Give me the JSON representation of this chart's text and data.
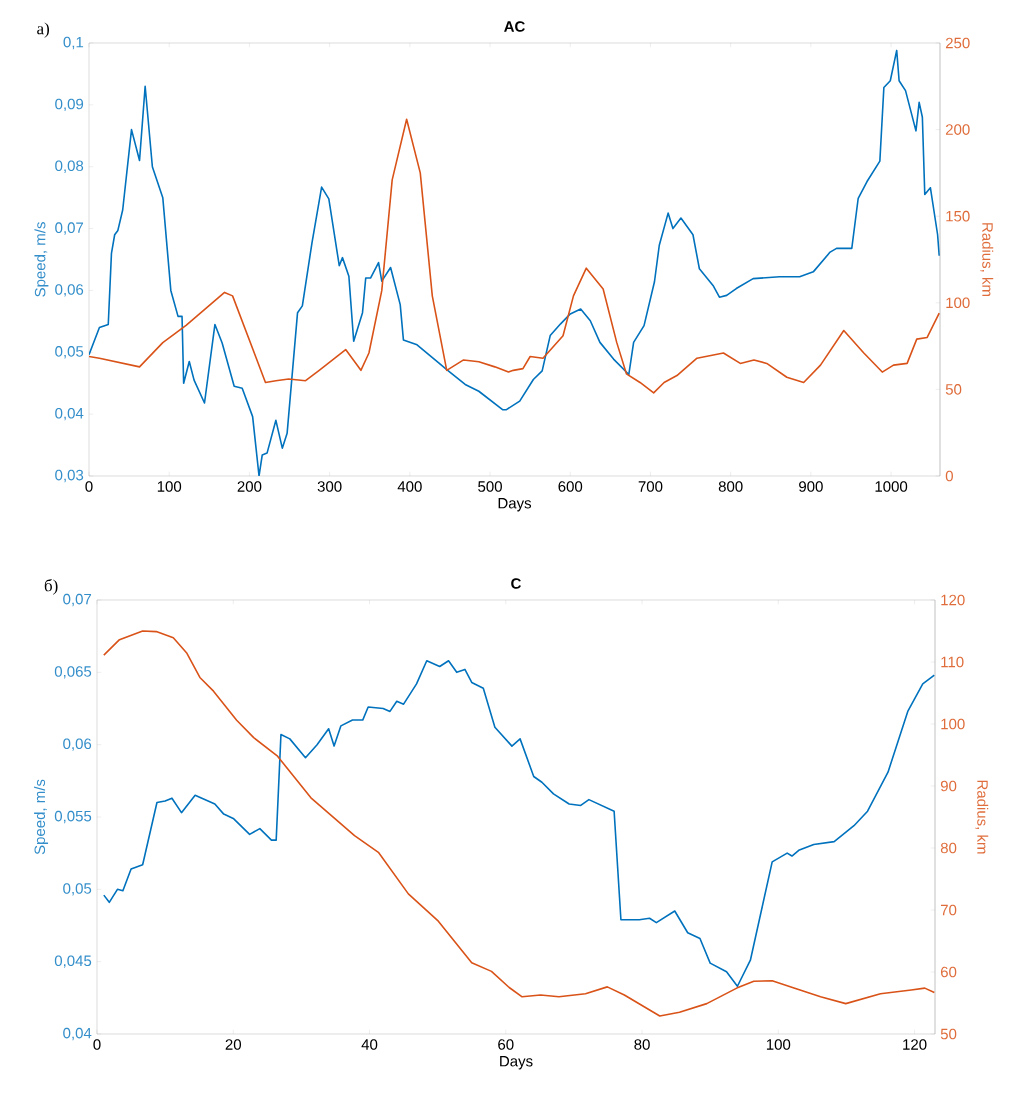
{
  "chart_data": [
    {
      "type": "line",
      "title": "AC",
      "xlabel": "Days",
      "ylabel": "Speed, m/s",
      "y2label": "Radius, km",
      "annotations": [
        "a)"
      ],
      "xlim": [
        0,
        1061
      ],
      "xticks": [
        0,
        100,
        200,
        300,
        400,
        500,
        600,
        700,
        800,
        900,
        1000
      ],
      "ylim": [
        0.03,
        0.1
      ],
      "yticks": [
        {
          "value": 0.03,
          "label": "0,03"
        },
        {
          "value": 0.04,
          "label": "0,04"
        },
        {
          "value": 0.05,
          "label": "0,05"
        },
        {
          "value": 0.06,
          "label": "0,06"
        },
        {
          "value": 0.07,
          "label": "0,07"
        },
        {
          "value": 0.08,
          "label": "0,08"
        },
        {
          "value": 0.09,
          "label": "0,09"
        },
        {
          "value": 0.1,
          "label": "0,1"
        }
      ],
      "y2lim": [
        0,
        250
      ],
      "y2ticks": [
        0,
        50,
        100,
        150,
        200,
        250
      ],
      "series": [
        {
          "color": "#0072bd",
          "x": [
            0,
            13,
            24,
            28,
            32,
            36,
            42,
            53,
            63,
            70,
            79,
            92,
            102,
            111,
            116,
            118,
            125,
            131,
            144,
            157,
            166,
            181,
            191,
            204,
            212,
            216,
            222,
            233,
            241,
            247,
            260,
            266,
            278,
            290,
            299,
            312,
            316,
            324,
            330,
            341,
            345,
            351,
            361,
            365,
            376,
            388,
            392,
            409,
            436,
            446,
            469,
            486,
            516,
            520,
            537,
            554,
            565,
            575,
            588,
            600,
            613,
            625,
            637,
            654,
            673,
            679,
            692,
            705,
            711,
            722,
            728,
            738,
            753,
            761,
            778,
            786,
            795,
            807,
            828,
            861,
            886,
            903,
            924,
            932,
            951,
            959,
            970,
            986,
            991,
            999,
            1007,
            1010,
            1018,
            1031,
            1035,
            1039,
            1042,
            1049,
            1058,
            1060
          ],
          "values": [
            0.0496,
            0.054,
            0.0545,
            0.066,
            0.069,
            0.0697,
            0.073,
            0.086,
            0.081,
            0.093,
            0.08,
            0.075,
            0.06,
            0.0558,
            0.0558,
            0.045,
            0.0485,
            0.0455,
            0.0418,
            0.0545,
            0.0515,
            0.0445,
            0.0442,
            0.0396,
            0.03,
            0.0334,
            0.0337,
            0.039,
            0.0345,
            0.0369,
            0.0564,
            0.0575,
            0.0677,
            0.0767,
            0.0748,
            0.064,
            0.0653,
            0.0623,
            0.0518,
            0.0564,
            0.062,
            0.062,
            0.0645,
            0.0615,
            0.0637,
            0.0577,
            0.052,
            0.0512,
            0.0483,
            0.0472,
            0.0448,
            0.0437,
            0.0407,
            0.0407,
            0.0421,
            0.0456,
            0.047,
            0.0527,
            0.0546,
            0.0562,
            0.057,
            0.0551,
            0.0516,
            0.0489,
            0.0464,
            0.0516,
            0.0543,
            0.0614,
            0.0673,
            0.0725,
            0.07,
            0.0717,
            0.069,
            0.0635,
            0.0608,
            0.0589,
            0.0592,
            0.0603,
            0.0619,
            0.0622,
            0.0622,
            0.063,
            0.0662,
            0.0668,
            0.0668,
            0.0749,
            0.0776,
            0.0809,
            0.0928,
            0.0939,
            0.0988,
            0.0939,
            0.0923,
            0.0858,
            0.0904,
            0.088,
            0.0755,
            0.0766,
            0.069,
            0.0656
          ]
        },
        {
          "color": "#d95319",
          "axis": "y2",
          "x": [
            0,
            13,
            63,
            92,
            121,
            169,
            179,
            220,
            233,
            249,
            270,
            287,
            320,
            339,
            349,
            365,
            378,
            396,
            413,
            428,
            446,
            467,
            486,
            506,
            523,
            529,
            541,
            550,
            566,
            591,
            604,
            620,
            641,
            658,
            670,
            687,
            704,
            717,
            733,
            758,
            791,
            812,
            829,
            845,
            870,
            891,
            912,
            941,
            966,
            989,
            1003,
            1020,
            1032,
            1045,
            1060
          ],
          "values": [
            69,
            68,
            63,
            77,
            87,
            106,
            104,
            54,
            55,
            56,
            55,
            61,
            73,
            61,
            71,
            107,
            171,
            206,
            175,
            104,
            61,
            67,
            66,
            63,
            60,
            61,
            62,
            69,
            68,
            81,
            104,
            120,
            108,
            77,
            59,
            54,
            48,
            54,
            58,
            68,
            71,
            65,
            67,
            65,
            57,
            54,
            64,
            84,
            71,
            60,
            64,
            65,
            79,
            80,
            94
          ]
        }
      ]
    },
    {
      "type": "line",
      "title": "C",
      "xlabel": "Days",
      "ylabel": "Speed, m/s",
      "y2label": "Radius, km",
      "annotations": [
        "б)"
      ],
      "xlim": [
        0,
        123
      ],
      "xticks": [
        0,
        20,
        40,
        60,
        80,
        100,
        120
      ],
      "ylim": [
        0.04,
        0.07
      ],
      "yticks": [
        {
          "value": 0.04,
          "label": "0,04"
        },
        {
          "value": 0.045,
          "label": "0,045"
        },
        {
          "value": 0.05,
          "label": "0,05"
        },
        {
          "value": 0.055,
          "label": "0,055"
        },
        {
          "value": 0.06,
          "label": "0,06"
        },
        {
          "value": 0.065,
          "label": "0,065"
        },
        {
          "value": 0.07,
          "label": "0,07"
        }
      ],
      "y2lim": [
        50,
        120
      ],
      "y2ticks": [
        50,
        60,
        70,
        80,
        90,
        100,
        110,
        120
      ],
      "series": [
        {
          "color": "#0072bd",
          "x": [
            1,
            1.8,
            3,
            3.8,
            5,
            6.7,
            8.8,
            10,
            11,
            12.4,
            14.4,
            17.3,
            18.6,
            20,
            22.4,
            23.9,
            25.6,
            26.3,
            27,
            28.3,
            30.6,
            32.3,
            34,
            34.8,
            35.8,
            37.5,
            39,
            39.8,
            42,
            43,
            44,
            45,
            46.9,
            48.4,
            50.3,
            51.6,
            52.8,
            54,
            55,
            56.7,
            58.4,
            60.9,
            62.1,
            64.1,
            65.3,
            67,
            69.3,
            71,
            72.2,
            75.9,
            76.9,
            79.6,
            81.1,
            82.1,
            84.8,
            86.7,
            88.5,
            90,
            92.4,
            94,
            95.9,
            99.1,
            101.3,
            102,
            103,
            105.2,
            108.2,
            111.1,
            113.1,
            116.1,
            119,
            121.2,
            122.9
          ],
          "values": [
            0.0496,
            0.0491,
            0.05,
            0.0499,
            0.0514,
            0.0517,
            0.056,
            0.0561,
            0.0563,
            0.0553,
            0.0565,
            0.0559,
            0.0552,
            0.0549,
            0.0538,
            0.0542,
            0.0534,
            0.0534,
            0.0607,
            0.0604,
            0.0591,
            0.06,
            0.0611,
            0.0599,
            0.0613,
            0.0617,
            0.0617,
            0.0626,
            0.0625,
            0.0623,
            0.063,
            0.0628,
            0.0642,
            0.0658,
            0.0654,
            0.0658,
            0.065,
            0.0652,
            0.0643,
            0.0639,
            0.0612,
            0.0599,
            0.0604,
            0.0578,
            0.0574,
            0.0566,
            0.0559,
            0.0558,
            0.0562,
            0.0554,
            0.0479,
            0.0479,
            0.048,
            0.0477,
            0.0485,
            0.047,
            0.0466,
            0.0449,
            0.0443,
            0.0433,
            0.0451,
            0.0519,
            0.0525,
            0.0523,
            0.0527,
            0.0531,
            0.0533,
            0.0544,
            0.0554,
            0.0581,
            0.0623,
            0.0642,
            0.0648
          ]
        },
        {
          "color": "#d95319",
          "axis": "y2",
          "x": [
            1,
            3.3,
            6.7,
            8.7,
            11.2,
            13.2,
            15.1,
            17.1,
            20.5,
            23,
            26.5,
            31.4,
            37.8,
            41.3,
            45.7,
            50.1,
            55,
            57.9,
            60.5,
            62.4,
            65.1,
            67.8,
            71.7,
            74.9,
            77.4,
            82.6,
            85.5,
            89.5,
            93.9,
            96.4,
            99.1,
            102.3,
            106.2,
            109.9,
            115,
            119.5,
            121.5,
            122.9
          ],
          "values": [
            111.1,
            113.6,
            115,
            114.9,
            113.9,
            111.4,
            107.5,
            105.3,
            100.6,
            97.8,
            94.8,
            88.1,
            82,
            79.3,
            72.6,
            68.2,
            61.5,
            60.1,
            57.5,
            56,
            56.3,
            56,
            56.5,
            57.6,
            56.3,
            52.9,
            53.5,
            54.9,
            57.4,
            58.5,
            58.6,
            57.4,
            56,
            54.9,
            56.5,
            57.1,
            57.4,
            56.7
          ]
        }
      ]
    }
  ]
}
